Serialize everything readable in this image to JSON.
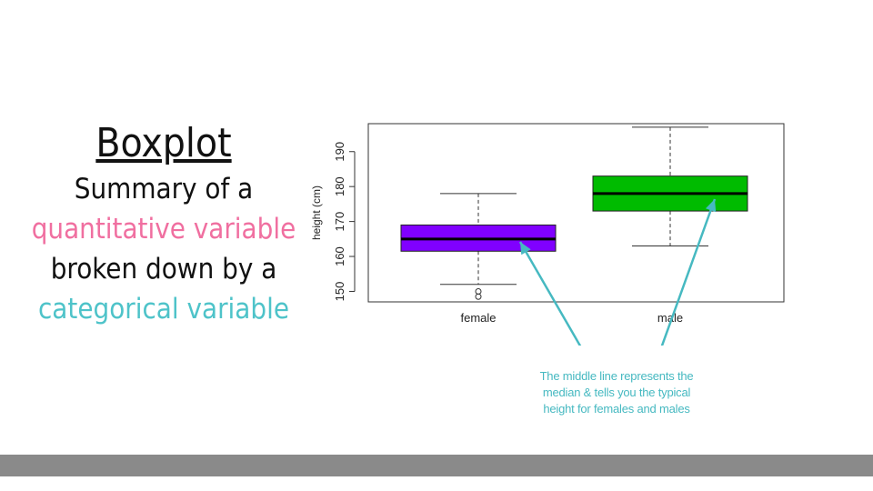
{
  "slide": {
    "title": "Boxplot",
    "line1": "Summary of a",
    "line2": "quantitative variable",
    "line3": "broken down by a",
    "line4": "categorical variable",
    "colors": {
      "pink": "#f06fa0",
      "teal": "#4ec3c9",
      "footer": "#8a8a8a"
    }
  },
  "annotation": {
    "line1": "The middle line represents the",
    "line2": "median & tells you the typical",
    "line3": "height for females and males",
    "color": "#46b9c1"
  },
  "chart_data": {
    "type": "boxplot",
    "title": "",
    "xlabel": "",
    "ylabel": "height (cm)",
    "ylim": [
      147,
      198
    ],
    "yticks": [
      150,
      160,
      170,
      180,
      190
    ],
    "categories": [
      "female",
      "male"
    ],
    "boxes": [
      {
        "category": "female",
        "whisker_low": 152,
        "q1": 161.5,
        "median": 165,
        "q3": 169,
        "whisker_high": 178,
        "outliers": [
          148.5,
          150
        ],
        "color": "#8000ff"
      },
      {
        "category": "male",
        "whisker_low": 163,
        "q1": 173,
        "median": 178,
        "q3": 183,
        "whisker_high": 197,
        "outliers": [],
        "color": "#00bb00"
      }
    ],
    "grid": false
  }
}
